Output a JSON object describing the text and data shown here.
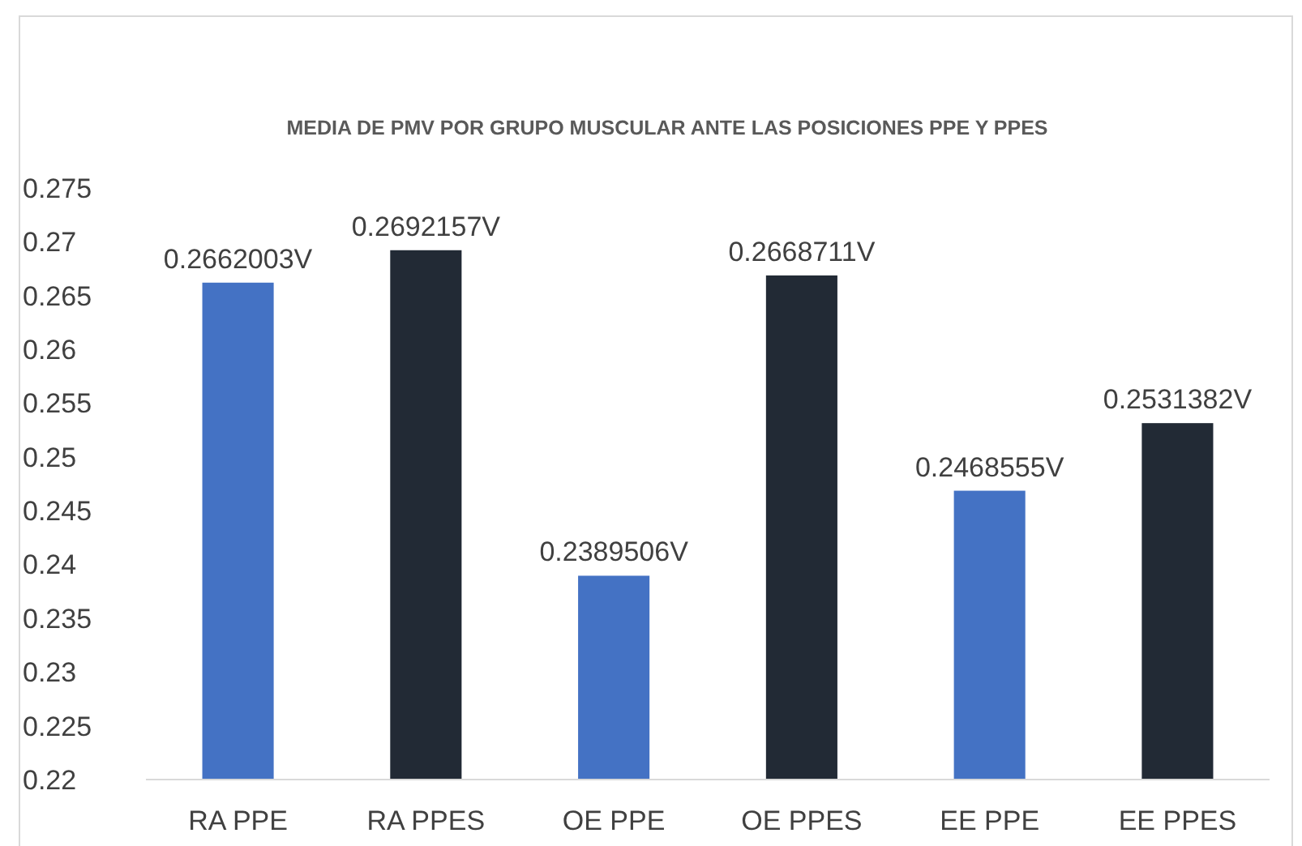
{
  "chart_data": {
    "type": "bar",
    "title": "MEDIA DE PMV POR GRUPO MUSCULAR ANTE LAS POSICIONES PPE Y PPES",
    "categories": [
      "RA PPE",
      "RA PPES",
      "OE PPE",
      "OE PPES",
      "EE PPE",
      "EE PPES"
    ],
    "values": [
      0.2662003,
      0.2692157,
      0.2389506,
      0.2668711,
      0.2468555,
      0.2531382
    ],
    "value_labels": [
      "0.2662003V",
      "0.2692157V",
      "0.2389506V",
      "0.2668711V",
      "0.2468555V",
      "0.2531382V"
    ],
    "colors": [
      "#4472c4",
      "#222a35",
      "#4472c4",
      "#222a35",
      "#4472c4",
      "#222a35"
    ],
    "ylim": [
      0.22,
      0.275
    ],
    "yticks": [
      0.22,
      0.225,
      0.23,
      0.235,
      0.24,
      0.245,
      0.25,
      0.255,
      0.26,
      0.265,
      0.27,
      0.275
    ],
    "grid": false
  }
}
